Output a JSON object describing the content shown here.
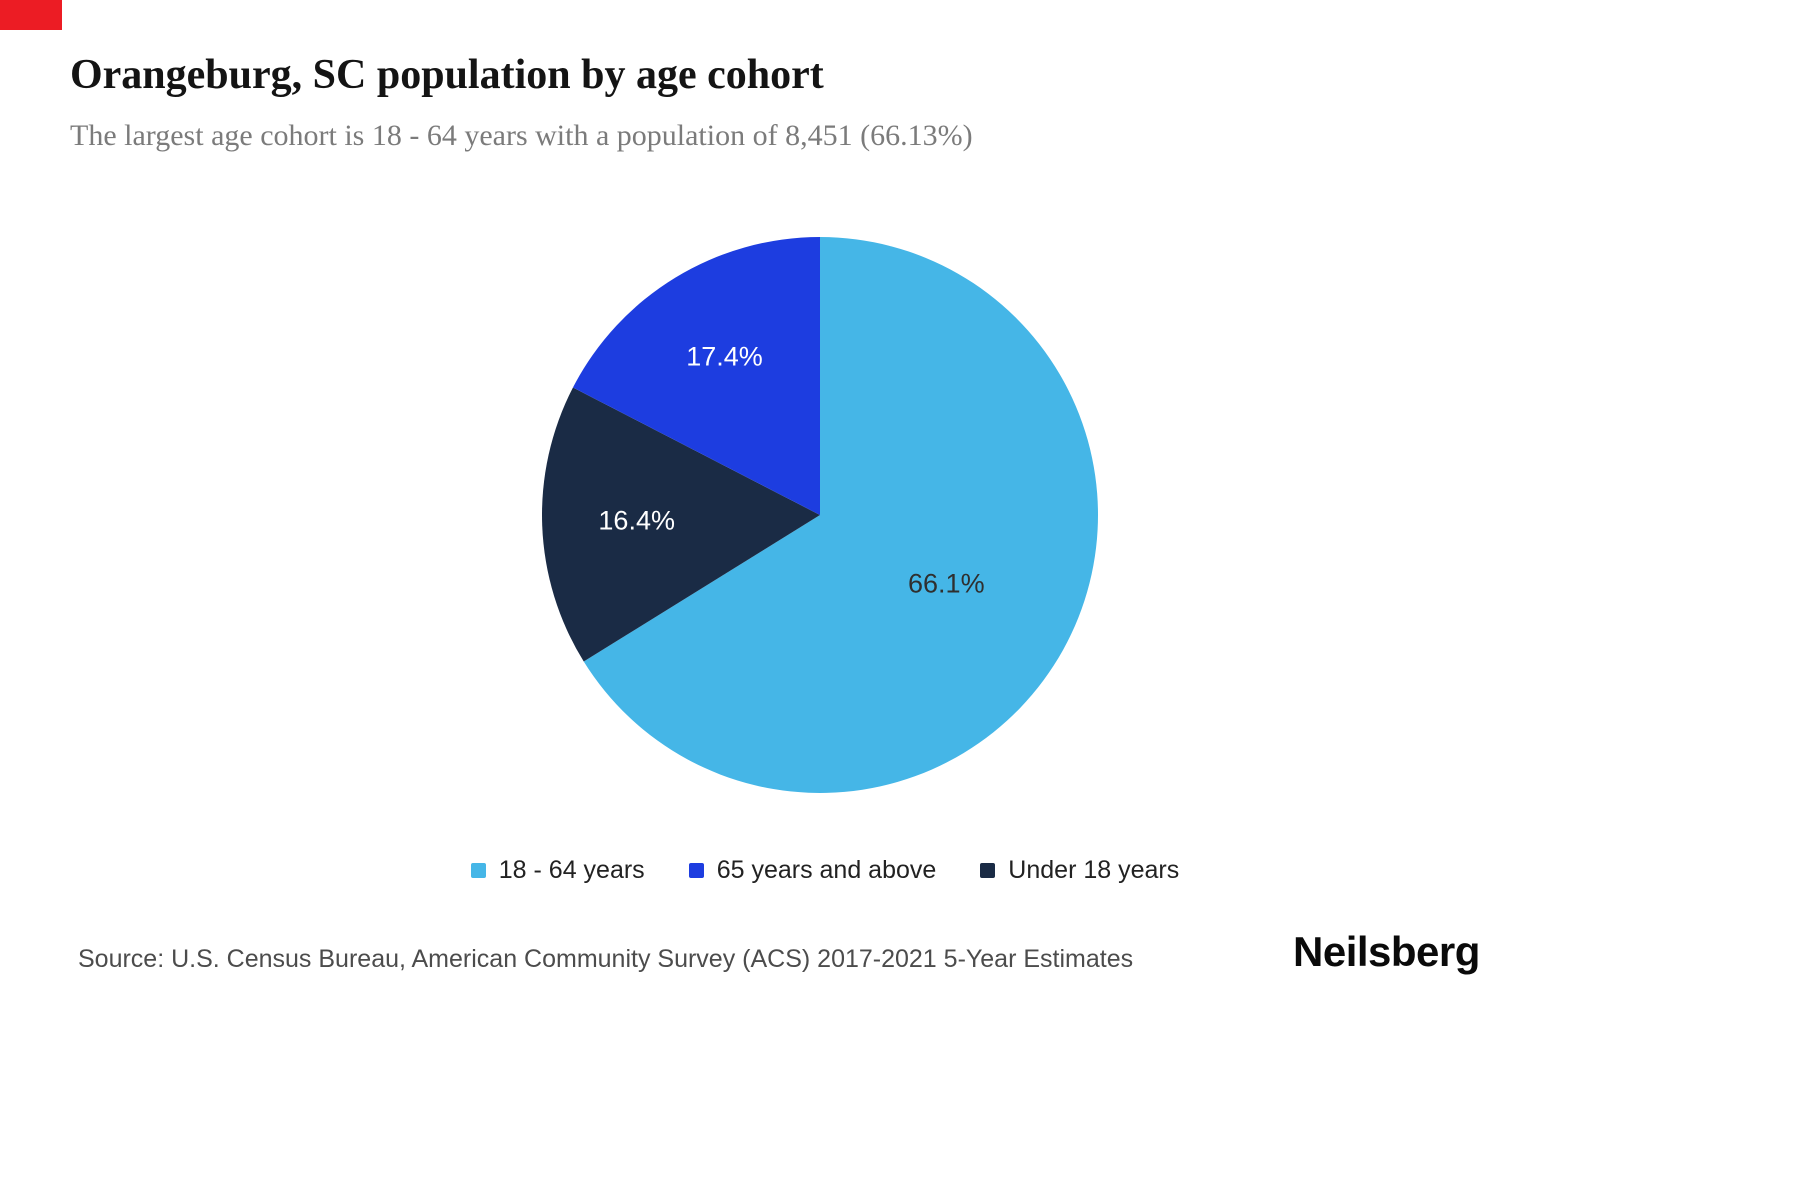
{
  "page": {
    "title": "Orangeburg, SC population by age cohort",
    "subtitle": "The largest age cohort is 18 - 64 years with a population of 8,451 (66.13%)",
    "source": "Source: U.S. Census Bureau, American Community Survey (ACS) 2017-2021 5-Year Estimates",
    "brand": "Neilsberg",
    "accent_red": "#ec1c24"
  },
  "chart_data": {
    "type": "pie",
    "title": "Orangeburg, SC population by age cohort",
    "start_angle_deg": 0,
    "direction": "clockwise",
    "largest_cohort": {
      "label": "18 - 64 years",
      "population": 8451,
      "percent": 66.13
    },
    "slices": [
      {
        "label": "18 - 64 years",
        "value": 66.1,
        "display": "66.1%",
        "color": "#45b6e7",
        "label_color": "#2f2f2f"
      },
      {
        "label": "Under 18 years",
        "value": 16.4,
        "display": "16.4%",
        "color": "#1a2b45",
        "label_color": "#ffffff"
      },
      {
        "label": "65 years and above",
        "value": 17.4,
        "display": "17.4%",
        "color": "#1d3de0",
        "label_color": "#ffffff"
      }
    ],
    "legend": [
      {
        "label": "18 - 64 years",
        "color": "#45b6e7"
      },
      {
        "label": "65 years and above",
        "color": "#1d3de0"
      },
      {
        "label": "Under 18 years",
        "color": "#1a2b45"
      }
    ],
    "legend_position": "bottom"
  }
}
